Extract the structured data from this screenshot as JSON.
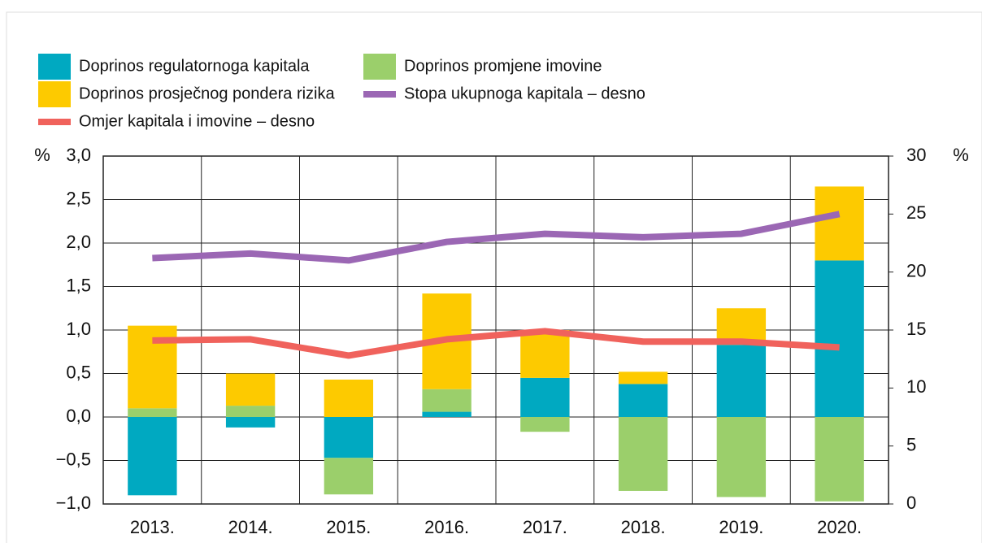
{
  "chart_data": {
    "type": "bar",
    "categories": [
      "2013.",
      "2014.",
      "2015.",
      "2016.",
      "2017.",
      "2018.",
      "2019.",
      "2020."
    ],
    "series": [
      {
        "name": "Doprinos regulatornoga kapitala",
        "color": "#00a9c1",
        "values": [
          -0.9,
          -0.12,
          -0.47,
          0.06,
          0.45,
          0.38,
          0.83,
          1.8
        ]
      },
      {
        "name": "Doprinos promjene imovine",
        "color": "#9bcf6b",
        "values": [
          0.1,
          0.13,
          -0.42,
          0.26,
          -0.17,
          -0.85,
          -0.92,
          -0.97
        ]
      },
      {
        "name": "Doprinos prosječnog pondera rizika",
        "color": "#fdca00",
        "values": [
          0.95,
          0.37,
          0.43,
          1.1,
          0.55,
          0.14,
          0.42,
          0.85
        ]
      },
      {
        "name": "Stopa ukupnoga kapitala – desno",
        "color": "#9b67b4",
        "type": "line",
        "axis": "y2",
        "values": [
          21.2,
          21.6,
          21.0,
          22.6,
          23.3,
          23.0,
          23.3,
          25.0
        ]
      },
      {
        "name": "Omjer kapitala i imovine – desno",
        "color": "#f0625c",
        "type": "line",
        "axis": "y2",
        "values": [
          14.1,
          14.2,
          12.8,
          14.2,
          14.9,
          14.0,
          14.0,
          13.5
        ]
      }
    ],
    "stacked": true,
    "ylim": [
      -1.0,
      3.0
    ],
    "yticks": [
      {
        "value": -1.0,
        "label": "−1,0"
      },
      {
        "value": -0.5,
        "label": "−0,5"
      },
      {
        "value": 0,
        "label": "0,0"
      },
      {
        "value": 0.5,
        "label": "0,5"
      },
      {
        "value": 1.0,
        "label": "1,0"
      },
      {
        "value": 1.5,
        "label": "1,5"
      },
      {
        "value": 2.0,
        "label": "2,0"
      },
      {
        "value": 2.5,
        "label": "2,5"
      },
      {
        "value": 3.0,
        "label": "3,0"
      }
    ],
    "y2lim": [
      0,
      30
    ],
    "y2ticks": [
      0,
      5,
      10,
      15,
      20,
      25,
      30
    ],
    "y_unit": "%",
    "y2_unit": "%",
    "grid": true
  }
}
